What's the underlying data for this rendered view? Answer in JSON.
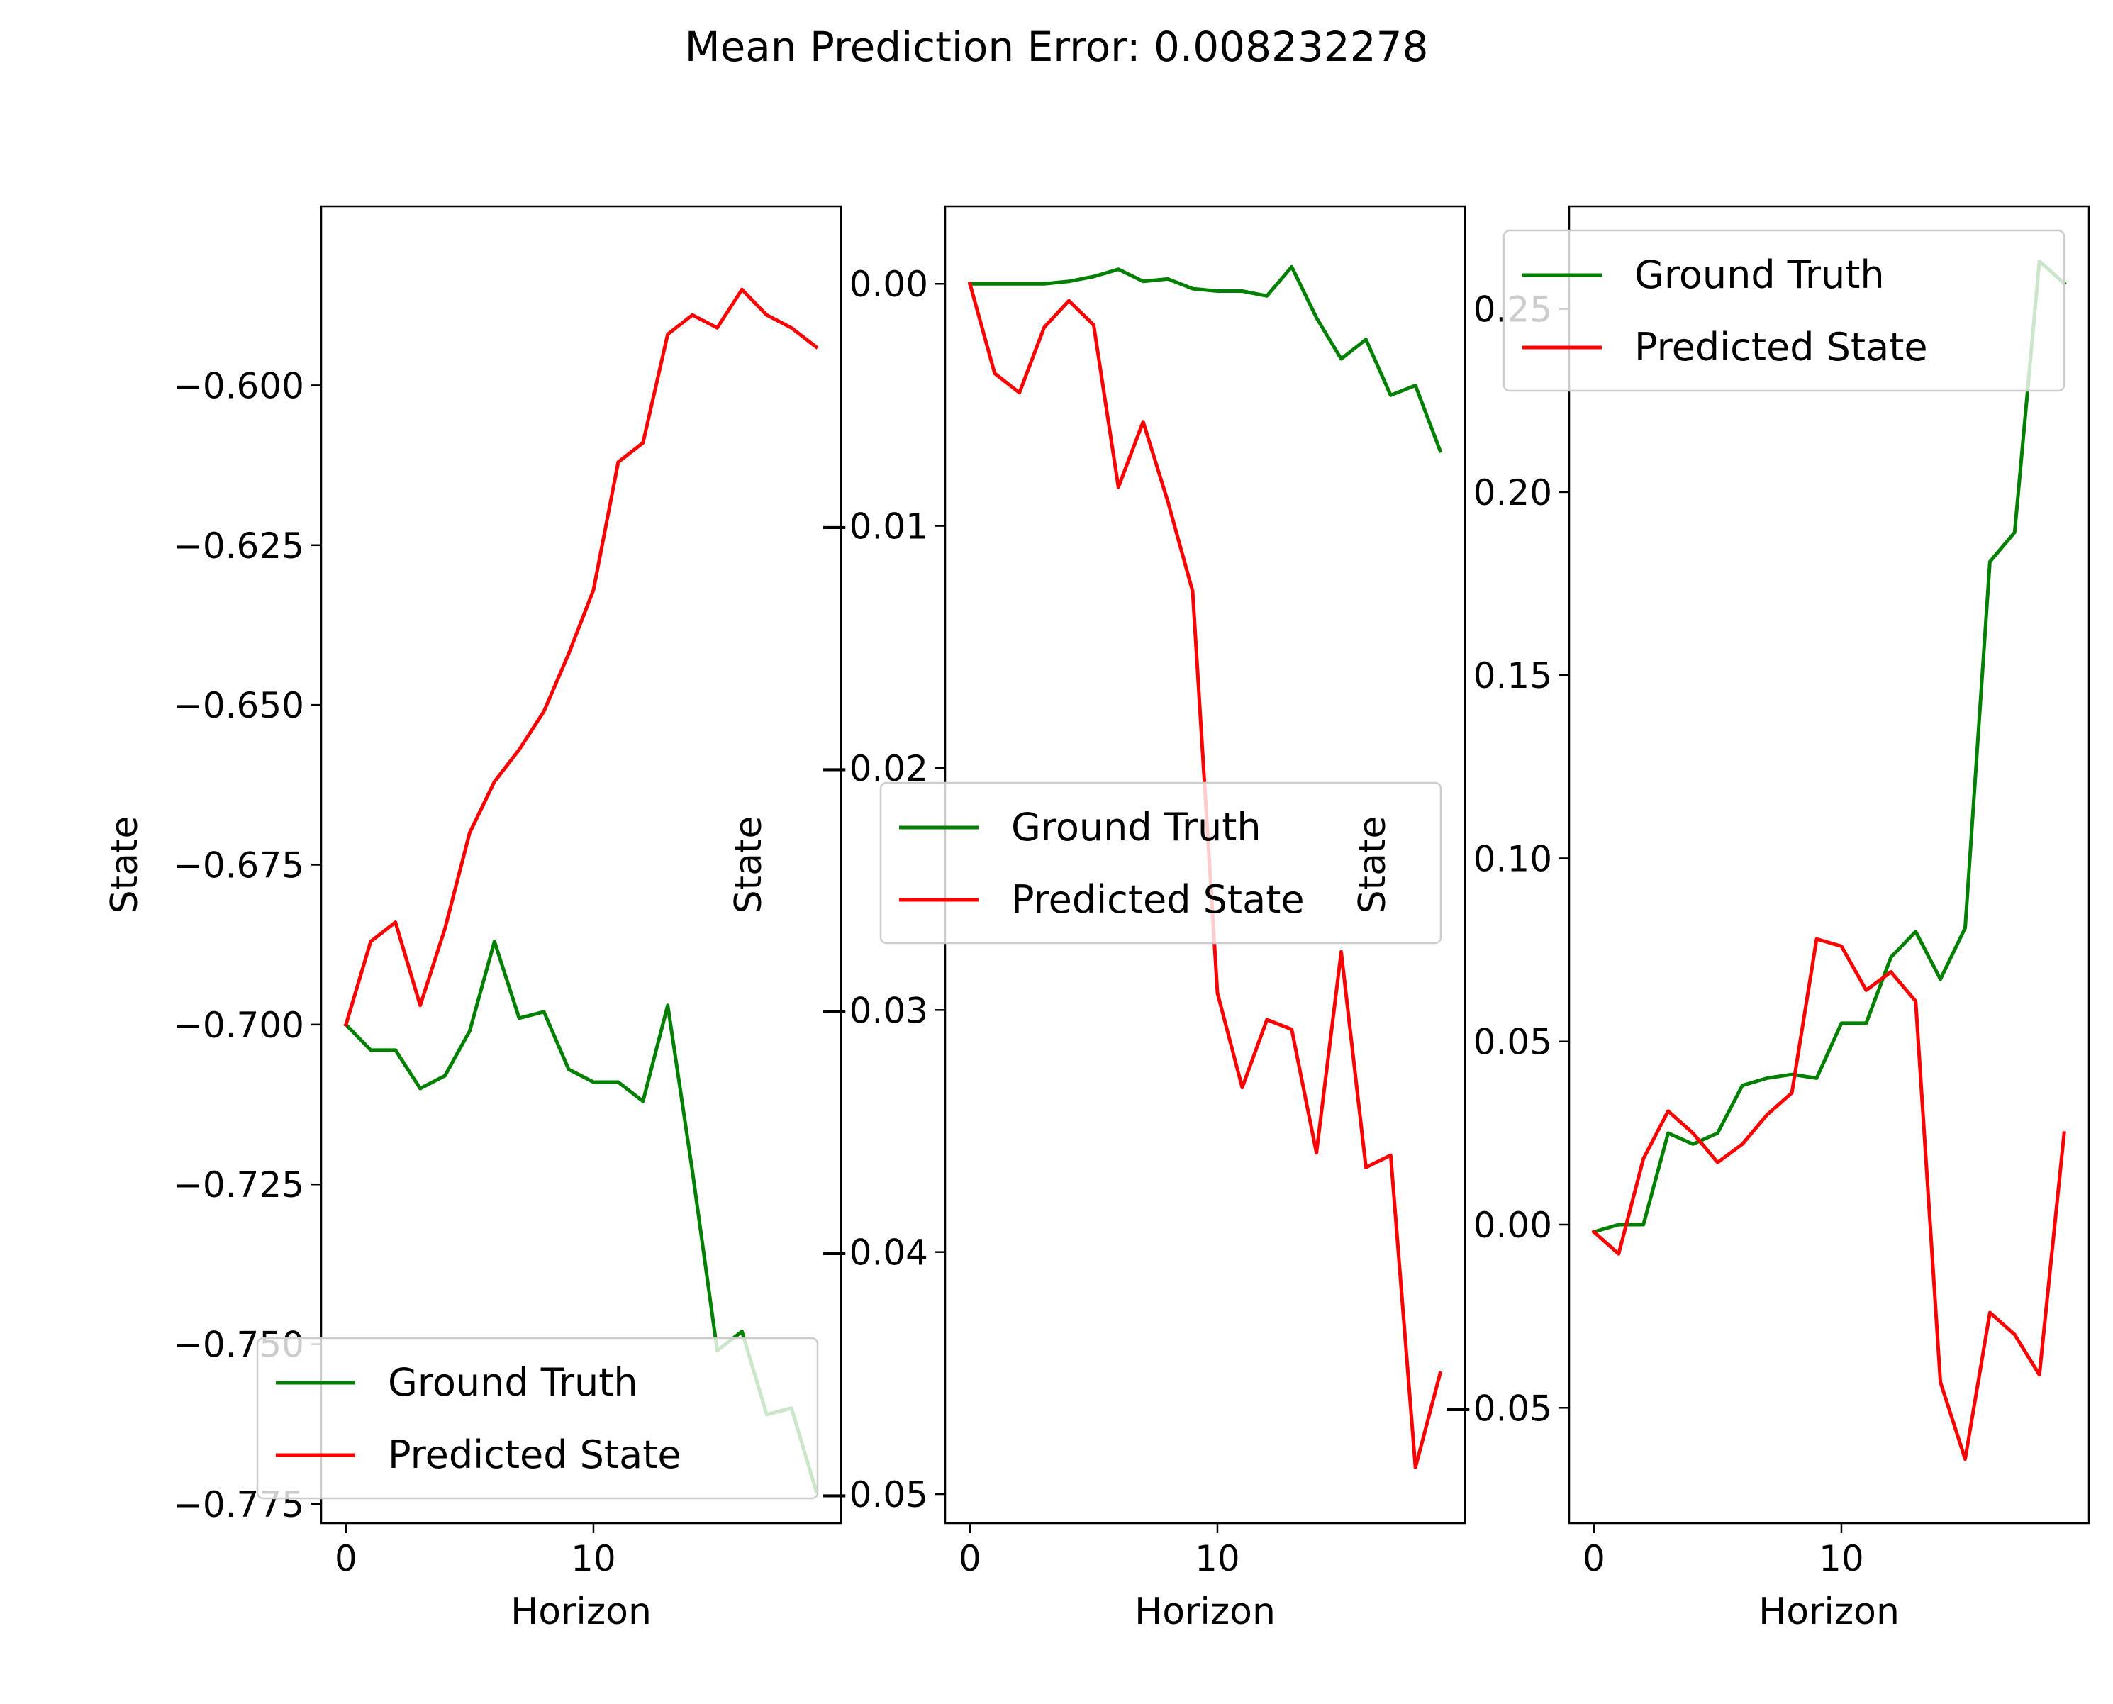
{
  "figure": {
    "suptitle": "Mean Prediction Error: 0.008232278"
  },
  "colors": {
    "ground_truth": "#008000",
    "predicted": "#ff0000",
    "axes": "#000000",
    "legend_border": "#cccccc"
  },
  "chart_data": [
    {
      "type": "line",
      "title": "",
      "xlabel": "Horizon",
      "ylabel": "State",
      "xlim": [
        -1,
        20
      ],
      "ylim": [
        -0.778,
        -0.572
      ],
      "xticks": [
        0,
        10
      ],
      "xtick_labels": [
        "0",
        "10"
      ],
      "yticks": [
        -0.6,
        -0.625,
        -0.65,
        -0.675,
        -0.7,
        -0.725,
        -0.75,
        -0.775
      ],
      "ytick_labels": [
        "−0.600",
        "−0.625",
        "−0.650",
        "−0.675",
        "−0.700",
        "−0.725",
        "−0.750",
        "−0.775"
      ],
      "legend": {
        "location": "lower-right",
        "entries": [
          "Ground Truth",
          "Predicted State"
        ]
      },
      "grid": false,
      "x": [
        0,
        1,
        2,
        3,
        4,
        5,
        6,
        7,
        8,
        9,
        10,
        11,
        12,
        13,
        14,
        15,
        16,
        17,
        18,
        19
      ],
      "series": [
        {
          "name": "Ground Truth",
          "color": "#008000",
          "values": [
            -0.7,
            -0.704,
            -0.704,
            -0.71,
            -0.708,
            -0.701,
            -0.687,
            -0.699,
            -0.698,
            -0.707,
            -0.709,
            -0.709,
            -0.712,
            -0.697,
            -0.723,
            -0.751,
            -0.748,
            -0.761,
            -0.76,
            -0.773
          ]
        },
        {
          "name": "Predicted State",
          "color": "#ff0000",
          "values": [
            -0.7,
            -0.687,
            -0.684,
            -0.697,
            -0.685,
            -0.67,
            -0.662,
            -0.657,
            -0.651,
            -0.642,
            -0.632,
            -0.612,
            -0.609,
            -0.592,
            -0.589,
            -0.591,
            -0.585,
            -0.589,
            -0.591,
            -0.594
          ]
        }
      ]
    },
    {
      "type": "line",
      "title": "",
      "xlabel": "Horizon",
      "ylabel": "State",
      "xlim": [
        -1,
        20
      ],
      "ylim": [
        -0.0512,
        0.0032
      ],
      "xticks": [
        0,
        10
      ],
      "xtick_labels": [
        "0",
        "10"
      ],
      "yticks": [
        0.0,
        -0.01,
        -0.02,
        -0.03,
        -0.04,
        -0.05
      ],
      "ytick_labels": [
        "0.00",
        "−0.01",
        "−0.02",
        "−0.03",
        "−0.04",
        "−0.05"
      ],
      "legend": {
        "location": "center",
        "entries": [
          "Ground Truth",
          "Predicted State"
        ]
      },
      "grid": false,
      "x": [
        0,
        1,
        2,
        3,
        4,
        5,
        6,
        7,
        8,
        9,
        10,
        11,
        12,
        13,
        14,
        15,
        16,
        17,
        18,
        19
      ],
      "series": [
        {
          "name": "Ground Truth",
          "color": "#008000",
          "values": [
            0.0,
            0.0,
            0.0,
            0.0,
            0.0001,
            0.0003,
            0.0006,
            0.0001,
            0.0002,
            -0.0002,
            -0.0003,
            -0.0003,
            -0.0005,
            0.0007,
            -0.0014,
            -0.0031,
            -0.0023,
            -0.0046,
            -0.0042,
            -0.0069
          ]
        },
        {
          "name": "Predicted State",
          "color": "#ff0000",
          "values": [
            0.0,
            -0.0037,
            -0.0045,
            -0.0018,
            -0.0007,
            -0.0017,
            -0.0084,
            -0.0057,
            -0.009,
            -0.0127,
            -0.0293,
            -0.0332,
            -0.0304,
            -0.0308,
            -0.0359,
            -0.0276,
            -0.0365,
            -0.036,
            -0.0489,
            -0.045
          ]
        }
      ]
    },
    {
      "type": "line",
      "title": "",
      "xlabel": "Horizon",
      "ylabel": "State",
      "xlim": [
        -1,
        20
      ],
      "ylim": [
        -0.0815,
        0.278
      ],
      "xticks": [
        0,
        10
      ],
      "xtick_labels": [
        "0",
        "10"
      ],
      "yticks": [
        0.25,
        0.2,
        0.15,
        0.1,
        0.05,
        0.0,
        -0.05
      ],
      "ytick_labels": [
        "0.25",
        "0.20",
        "0.15",
        "0.10",
        "0.05",
        "0.00",
        "−0.05"
      ],
      "legend": {
        "location": "upper-right",
        "entries": [
          "Ground Truth",
          "Predicted State"
        ]
      },
      "grid": false,
      "x": [
        0,
        1,
        2,
        3,
        4,
        5,
        6,
        7,
        8,
        9,
        10,
        11,
        12,
        13,
        14,
        15,
        16,
        17,
        18,
        19
      ],
      "series": [
        {
          "name": "Ground Truth",
          "color": "#008000",
          "values": [
            -0.002,
            0.0,
            0.0,
            0.025,
            0.022,
            0.025,
            0.038,
            0.04,
            0.041,
            0.04,
            0.055,
            0.055,
            0.073,
            0.08,
            0.067,
            0.081,
            0.181,
            0.189,
            0.263,
            0.257
          ]
        },
        {
          "name": "Predicted State",
          "color": "#ff0000",
          "values": [
            -0.002,
            -0.008,
            0.018,
            0.031,
            0.025,
            0.017,
            0.022,
            0.03,
            0.036,
            0.078,
            0.076,
            0.064,
            0.069,
            0.061,
            -0.043,
            -0.064,
            -0.024,
            -0.03,
            -0.041,
            0.025
          ]
        }
      ]
    }
  ]
}
